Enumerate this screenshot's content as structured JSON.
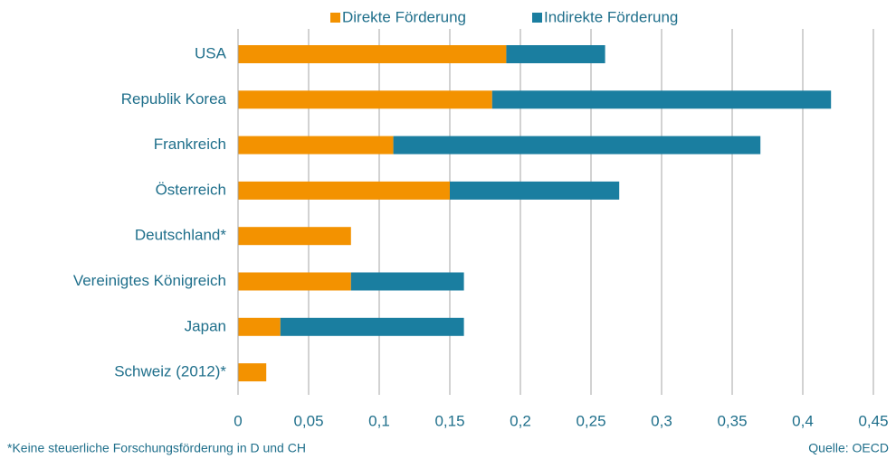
{
  "chart_data": {
    "type": "stacked-barh",
    "categories": [
      "USA",
      "Republik Korea",
      "Frankreich",
      "Österreich",
      "Deutschland*",
      "Vereinigtes Königreich",
      "Japan",
      "Schweiz (2012)*"
    ],
    "series": [
      {
        "name": "Direkte Förderung",
        "color": "#f39200",
        "values": [
          0.19,
          0.18,
          0.11,
          0.15,
          0.08,
          0.08,
          0.03,
          0.02
        ]
      },
      {
        "name": "Indirekte Förderung",
        "color": "#1a7ea0",
        "values": [
          0.07,
          0.24,
          0.26,
          0.12,
          null,
          0.08,
          0.13,
          null
        ]
      }
    ],
    "xlim": [
      0,
      0.45
    ],
    "xticks": [
      0,
      {
        "value": 0.05,
        "label": "0,05"
      },
      {
        "value": 0.1,
        "label": "0,1"
      },
      {
        "value": 0.15,
        "label": "0,15"
      },
      {
        "value": 0.2,
        "label": "0,2"
      },
      {
        "value": 0.25,
        "label": "0,25"
      },
      {
        "value": 0.3,
        "label": "0,3"
      },
      {
        "value": 0.35,
        "label": "0,35"
      },
      {
        "value": 0.4,
        "label": "0,4"
      },
      {
        "value": 0.45,
        "label": "0,45"
      }
    ],
    "grid": true,
    "legend": "top",
    "footnote": "*Keine steuerliche Forschungsförderung in D und CH",
    "source": "Quelle: OECD"
  }
}
